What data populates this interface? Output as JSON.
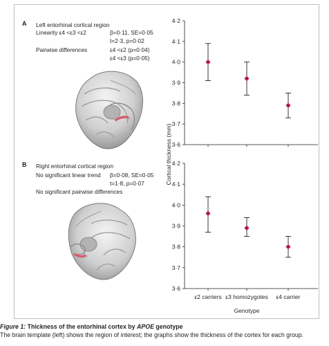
{
  "panel_a": {
    "letter": "A",
    "title": "Left entorhinal cortical region",
    "trend_label": "Linearity ε4 <ε3 <ε2",
    "stat1": "β=0·11, SE=0·05",
    "stat2": "t=2·3, p=0·02",
    "pair_label": "Pairwise differences",
    "pair1": "ε4 <ε2 (p=0·04)",
    "pair2": "ε4 <ε3 (p=0·05)"
  },
  "panel_b": {
    "letter": "B",
    "title": "Right entorhinal cortical region",
    "trend_label": "No significant linear trend",
    "stat1": "β=0·08, SE=0·05",
    "stat2": "t=1·8, p=0·07",
    "pair_label": "No significant pairwise differences"
  },
  "caption": {
    "lead": "Figure 1:",
    "title_pre": "Thickness of the entorhinal cortex by ",
    "title_gene": "APOE",
    "title_post": " genotype",
    "text": "The brain template (left) shows the region of interest; the graphs show the thickness of the cortex for each group."
  },
  "colors": {
    "marker": "#b5163c",
    "errorbar": "#231f20",
    "highlight": "#e0566a"
  },
  "icons": [
    "brain-template-left-icon",
    "brain-template-right-icon"
  ],
  "chart_data": [
    {
      "type": "scatter",
      "ylabel": "Cortical thickness (mm)",
      "ylim": [
        3.6,
        4.2
      ],
      "yticks": [
        "3·6",
        "3·7",
        "3·8",
        "3·9",
        "4·0",
        "4·1",
        "4·2"
      ],
      "categories": [
        "ε2 carriers",
        "ε3 homozygotes",
        "ε4 carrier"
      ],
      "values": [
        4.0,
        3.92,
        3.79
      ],
      "err_low": [
        3.91,
        3.84,
        3.73
      ],
      "err_high": [
        4.09,
        4.0,
        3.85
      ]
    },
    {
      "type": "scatter",
      "xlabel": "Genotype",
      "ylim": [
        3.6,
        4.2
      ],
      "yticks": [
        "3·6",
        "3·7",
        "3·8",
        "3·9",
        "4·0",
        "4·1",
        "4·2"
      ],
      "categories": [
        "ε2 carriers",
        "ε3 homozygotes",
        "ε4 carrier"
      ],
      "values": [
        3.96,
        3.89,
        3.8
      ],
      "err_low": [
        3.87,
        3.85,
        3.75
      ],
      "err_high": [
        4.04,
        3.94,
        3.85
      ]
    }
  ]
}
